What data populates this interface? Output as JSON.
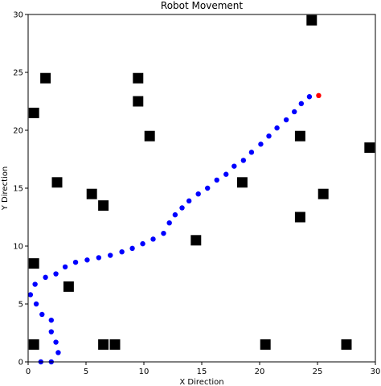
{
  "chart_data": {
    "type": "scatter",
    "title": "Robot Movement",
    "xlabel": "X Direction",
    "ylabel": "Y Direction",
    "xlim": [
      0,
      30
    ],
    "ylim": [
      0,
      30
    ],
    "xticks": [
      0,
      5,
      10,
      15,
      20,
      25,
      30
    ],
    "yticks": [
      0,
      5,
      10,
      15,
      20,
      25,
      30
    ],
    "grid": false,
    "series": [
      {
        "marker": "square",
        "color": "#000000",
        "points": [
          [
            24.5,
            29.5
          ],
          [
            1.5,
            24.5
          ],
          [
            9.5,
            24.5
          ],
          [
            9.5,
            22.5
          ],
          [
            0.5,
            21.5
          ],
          [
            10.5,
            19.5
          ],
          [
            23.5,
            19.5
          ],
          [
            29.5,
            18.5
          ],
          [
            2.5,
            15.5
          ],
          [
            18.5,
            15.5
          ],
          [
            5.5,
            14.5
          ],
          [
            25.5,
            14.5
          ],
          [
            6.5,
            13.5
          ],
          [
            23.5,
            12.5
          ],
          [
            14.5,
            10.5
          ],
          [
            0.5,
            8.5
          ],
          [
            3.5,
            6.5
          ],
          [
            0.5,
            1.5
          ],
          [
            6.5,
            1.5
          ],
          [
            7.5,
            1.5
          ],
          [
            20.5,
            1.5
          ],
          [
            27.5,
            1.5
          ]
        ]
      },
      {
        "marker": "circle",
        "color": "#0000ff",
        "points": [
          [
            1.1,
            0.0
          ],
          [
            2.0,
            0.0
          ],
          [
            2.6,
            0.8
          ],
          [
            2.4,
            1.7
          ],
          [
            2.0,
            2.6
          ],
          [
            2.0,
            3.6
          ],
          [
            1.2,
            4.1
          ],
          [
            0.7,
            5.0
          ],
          [
            0.2,
            5.8
          ],
          [
            0.6,
            6.7
          ],
          [
            1.5,
            7.3
          ],
          [
            2.4,
            7.6
          ],
          [
            3.2,
            8.2
          ],
          [
            4.1,
            8.6
          ],
          [
            5.1,
            8.8
          ],
          [
            6.1,
            9.0
          ],
          [
            7.1,
            9.2
          ],
          [
            8.1,
            9.5
          ],
          [
            9.0,
            9.8
          ],
          [
            9.9,
            10.2
          ],
          [
            10.8,
            10.6
          ],
          [
            11.7,
            11.1
          ],
          [
            12.2,
            12.0
          ],
          [
            12.7,
            12.7
          ],
          [
            13.3,
            13.3
          ],
          [
            13.9,
            13.9
          ],
          [
            14.7,
            14.5
          ],
          [
            15.5,
            15.0
          ],
          [
            16.3,
            15.7
          ],
          [
            17.1,
            16.2
          ],
          [
            17.8,
            16.9
          ],
          [
            18.6,
            17.4
          ],
          [
            19.3,
            18.1
          ],
          [
            20.1,
            18.8
          ],
          [
            20.8,
            19.5
          ],
          [
            21.5,
            20.2
          ],
          [
            22.3,
            20.9
          ],
          [
            23.0,
            21.6
          ],
          [
            23.6,
            22.3
          ],
          [
            24.3,
            22.9
          ]
        ]
      },
      {
        "marker": "circle",
        "color": "#ff0000",
        "points": [
          [
            25.1,
            23.0
          ]
        ]
      }
    ]
  }
}
